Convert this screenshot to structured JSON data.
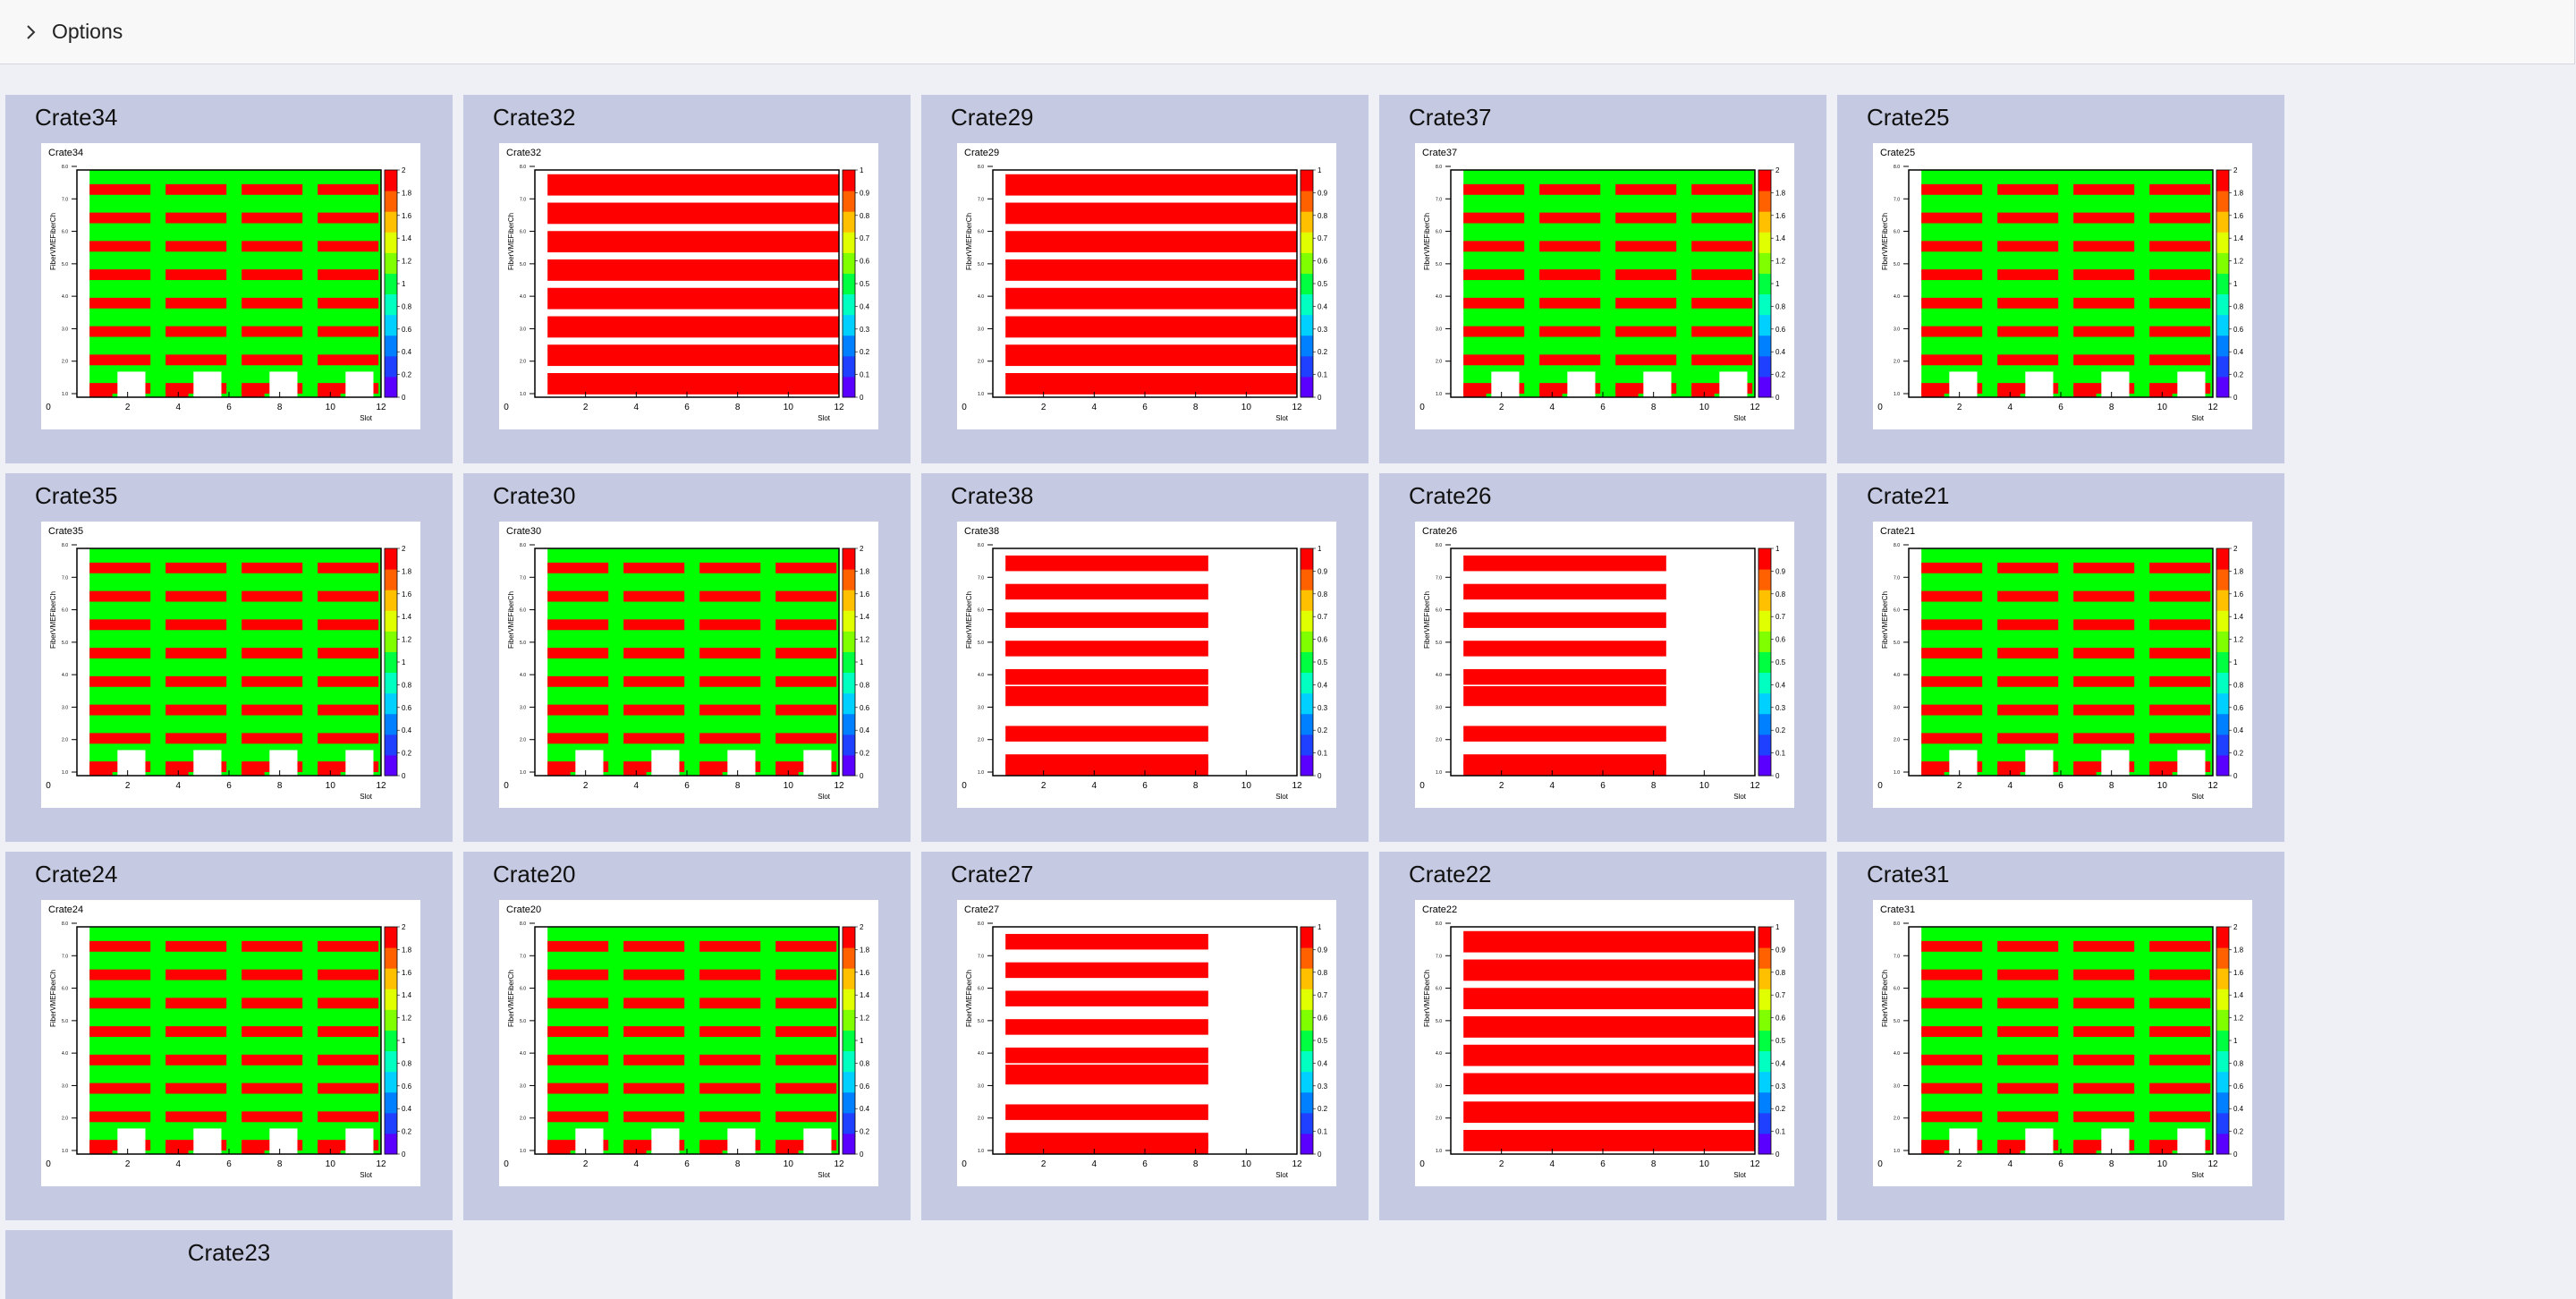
{
  "options": {
    "label": "Options",
    "icon": "chevron-right-icon"
  },
  "histogram_common": {
    "x_axis_label": "Slot",
    "y_axis_label": "FiberVMEFiberCh",
    "x_ticks": [
      "0",
      "2",
      "4",
      "6",
      "8",
      "10",
      "12"
    ],
    "y_ticks": [
      "1.0",
      "2.0",
      "3.0",
      "4.0",
      "5.0",
      "6.0",
      "7.0",
      "8.0"
    ]
  },
  "colors": {
    "page_bg": "#eff0f5",
    "card_bg": "#c5cae2",
    "ok": "#00ff00",
    "error": "#ff0000"
  },
  "crates": [
    {
      "title": "Crate34",
      "plot_title": "Crate34",
      "pattern": "green",
      "palette_max": 2,
      "palette_ticks": [
        "0",
        "0.2",
        "0.4",
        "0.6",
        "0.8",
        "1",
        "1.2",
        "1.4",
        "1.6",
        "1.8",
        "2"
      ]
    },
    {
      "title": "Crate32",
      "plot_title": "Crate32",
      "pattern": "red_full",
      "palette_max": 1,
      "palette_ticks": [
        "0",
        "0.1",
        "0.2",
        "0.3",
        "0.4",
        "0.5",
        "0.6",
        "0.7",
        "0.8",
        "0.9",
        "1"
      ]
    },
    {
      "title": "Crate29",
      "plot_title": "Crate29",
      "pattern": "red_full",
      "palette_max": 1,
      "palette_ticks": [
        "0",
        "0.1",
        "0.2",
        "0.3",
        "0.4",
        "0.5",
        "0.6",
        "0.7",
        "0.8",
        "0.9",
        "1"
      ]
    },
    {
      "title": "Crate37",
      "plot_title": "Crate37",
      "pattern": "green",
      "palette_max": 2,
      "palette_ticks": [
        "0",
        "0.2",
        "0.4",
        "0.6",
        "0.8",
        "1",
        "1.2",
        "1.4",
        "1.6",
        "1.8",
        "2"
      ]
    },
    {
      "title": "Crate25",
      "plot_title": "Crate25",
      "pattern": "green",
      "palette_max": 2,
      "palette_ticks": [
        "0",
        "0.2",
        "0.4",
        "0.6",
        "0.8",
        "1",
        "1.2",
        "1.4",
        "1.6",
        "1.8",
        "2"
      ]
    },
    {
      "title": "Crate35",
      "plot_title": "Crate35",
      "pattern": "green",
      "palette_max": 2,
      "palette_ticks": [
        "0",
        "0.2",
        "0.4",
        "0.6",
        "0.8",
        "1",
        "1.2",
        "1.4",
        "1.6",
        "1.8",
        "2"
      ]
    },
    {
      "title": "Crate30",
      "plot_title": "Crate30",
      "pattern": "green",
      "palette_max": 2,
      "palette_ticks": [
        "0",
        "0.2",
        "0.4",
        "0.6",
        "0.8",
        "1",
        "1.2",
        "1.4",
        "1.6",
        "1.8",
        "2"
      ]
    },
    {
      "title": "Crate38",
      "plot_title": "Crate38",
      "pattern": "red_partial",
      "palette_max": 1,
      "palette_ticks": [
        "0",
        "0.1",
        "0.2",
        "0.3",
        "0.4",
        "0.5",
        "0.6",
        "0.7",
        "0.8",
        "0.9",
        "1"
      ]
    },
    {
      "title": "Crate26",
      "plot_title": "Crate26",
      "pattern": "red_partial",
      "palette_max": 1,
      "palette_ticks": [
        "0",
        "0.1",
        "0.2",
        "0.3",
        "0.4",
        "0.5",
        "0.6",
        "0.7",
        "0.8",
        "0.9",
        "1"
      ]
    },
    {
      "title": "Crate21",
      "plot_title": "Crate21",
      "pattern": "green",
      "palette_max": 2,
      "palette_ticks": [
        "0",
        "0.2",
        "0.4",
        "0.6",
        "0.8",
        "1",
        "1.2",
        "1.4",
        "1.6",
        "1.8",
        "2"
      ]
    },
    {
      "title": "Crate24",
      "plot_title": "Crate24",
      "pattern": "green",
      "palette_max": 2,
      "palette_ticks": [
        "0",
        "0.2",
        "0.4",
        "0.6",
        "0.8",
        "1",
        "1.2",
        "1.4",
        "1.6",
        "1.8",
        "2"
      ]
    },
    {
      "title": "Crate20",
      "plot_title": "Crate20",
      "pattern": "green",
      "palette_max": 2,
      "palette_ticks": [
        "0",
        "0.2",
        "0.4",
        "0.6",
        "0.8",
        "1",
        "1.2",
        "1.4",
        "1.6",
        "1.8",
        "2"
      ]
    },
    {
      "title": "Crate27",
      "plot_title": "Crate27",
      "pattern": "red_partial",
      "palette_max": 1,
      "palette_ticks": [
        "0",
        "0.1",
        "0.2",
        "0.3",
        "0.4",
        "0.5",
        "0.6",
        "0.7",
        "0.8",
        "0.9",
        "1"
      ]
    },
    {
      "title": "Crate22",
      "plot_title": "Crate22",
      "pattern": "red_full",
      "palette_max": 1,
      "palette_ticks": [
        "0",
        "0.1",
        "0.2",
        "0.3",
        "0.4",
        "0.5",
        "0.6",
        "0.7",
        "0.8",
        "0.9",
        "1"
      ]
    },
    {
      "title": "Crate31",
      "plot_title": "Crate31",
      "pattern": "green",
      "palette_max": 2,
      "palette_ticks": [
        "0",
        "0.2",
        "0.4",
        "0.6",
        "0.8",
        "1",
        "1.2",
        "1.4",
        "1.6",
        "1.8",
        "2"
      ]
    },
    {
      "title": "Crate23",
      "plot_title": "",
      "pattern": "none",
      "palette_max": 0,
      "palette_ticks": []
    }
  ]
}
